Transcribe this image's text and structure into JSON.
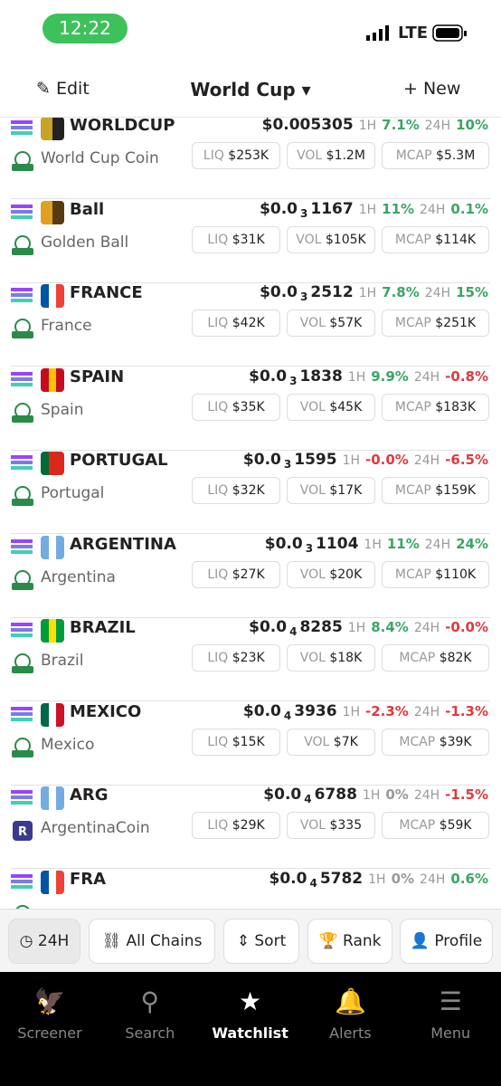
{
  "status": {
    "time": "12:22",
    "network": "LTE"
  },
  "header": {
    "edit": "Edit",
    "title": "World Cup",
    "new": "New"
  },
  "labels": {
    "h1": "1H",
    "h24": "24H",
    "liq": "LIQ",
    "vol": "VOL",
    "mcap": "MCAP"
  },
  "tokens": [
    {
      "symbol": "WORLDCUP",
      "name": "World Cup Coin",
      "price": {
        "main": "$0.005305"
      },
      "change_1h": "7.1%",
      "change_24h": "10%",
      "liq": "$253K",
      "vol": "$1.2M",
      "mcap": "$5.3M"
    },
    {
      "symbol": "Ball",
      "name": "Golden Ball",
      "price": {
        "main": "$0.0",
        "sub": "3",
        "tail": "1167"
      },
      "change_1h": "11%",
      "change_24h": "0.1%",
      "liq": "$31K",
      "vol": "$105K",
      "mcap": "$114K"
    },
    {
      "symbol": "FRANCE",
      "name": "France",
      "price": {
        "main": "$0.0",
        "sub": "3",
        "tail": "2512"
      },
      "change_1h": "7.8%",
      "change_24h": "15%",
      "liq": "$42K",
      "vol": "$57K",
      "mcap": "$251K"
    },
    {
      "symbol": "SPAIN",
      "name": "Spain",
      "price": {
        "main": "$0.0",
        "sub": "3",
        "tail": "1838"
      },
      "change_1h": "9.9%",
      "change_24h": "-0.8%",
      "liq": "$35K",
      "vol": "$45K",
      "mcap": "$183K"
    },
    {
      "symbol": "PORTUGAL",
      "name": "Portugal",
      "price": {
        "main": "$0.0",
        "sub": "3",
        "tail": "1595"
      },
      "change_1h": "-0.0%",
      "change_24h": "-6.5%",
      "liq": "$32K",
      "vol": "$17K",
      "mcap": "$159K"
    },
    {
      "symbol": "ARGENTINA",
      "name": "Argentina",
      "price": {
        "main": "$0.0",
        "sub": "3",
        "tail": "1104"
      },
      "change_1h": "11%",
      "change_24h": "24%",
      "liq": "$27K",
      "vol": "$20K",
      "mcap": "$110K"
    },
    {
      "symbol": "BRAZIL",
      "name": "Brazil",
      "price": {
        "main": "$0.0",
        "sub": "4",
        "tail": "8285"
      },
      "change_1h": "8.4%",
      "change_24h": "-0.0%",
      "liq": "$23K",
      "vol": "$18K",
      "mcap": "$82K"
    },
    {
      "symbol": "MEXICO",
      "name": "Mexico",
      "price": {
        "main": "$0.0",
        "sub": "4",
        "tail": "3936"
      },
      "change_1h": "-2.3%",
      "change_24h": "-1.3%",
      "liq": "$15K",
      "vol": "$7K",
      "mcap": "$39K"
    },
    {
      "symbol": "ARG",
      "name": "ArgentinaCoin",
      "price": {
        "main": "$0.0",
        "sub": "4",
        "tail": "6788"
      },
      "change_1h": "0%",
      "change_24h": "-1.5%",
      "liq": "$29K",
      "vol": "$335",
      "mcap": "$59K"
    },
    {
      "symbol": "FRA",
      "price": {
        "main": "$0.0",
        "sub": "4",
        "tail": "5782"
      },
      "change_1h": "0%",
      "change_24h": "0.6%"
    }
  ],
  "filters": [
    "24H",
    "All Chains",
    "Sort",
    "Rank",
    "Profile"
  ],
  "nav": [
    "Screener",
    "Search",
    "Watchlist",
    "Alerts",
    "Menu"
  ]
}
